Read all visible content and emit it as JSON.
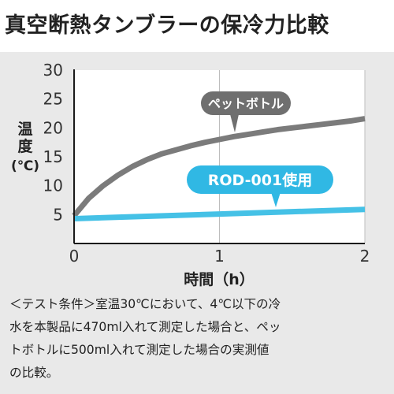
{
  "title": "真空断熱タンブラーの保冷力比較",
  "chart_data": {
    "type": "line",
    "xlabel": "時間（h）",
    "ylabel": [
      "温",
      "度",
      "(℃)"
    ],
    "xlim": [
      0,
      2
    ],
    "ylim": [
      0,
      30
    ],
    "xticks": [
      "0",
      "1",
      "2"
    ],
    "yticks": [
      "5",
      "10",
      "15",
      "20",
      "25",
      "30"
    ],
    "grid": "vertical",
    "series": [
      {
        "name": "ペットボトル",
        "color": "#7b7b7b",
        "label_color": "#6f6f6f",
        "x": [
          0.0,
          0.1,
          0.2,
          0.3,
          0.4,
          0.5,
          0.6,
          0.7,
          0.8,
          0.9,
          1.0,
          1.1,
          1.2,
          1.3,
          1.4,
          1.5,
          1.6,
          1.7,
          1.8,
          1.9,
          2.0
        ],
        "y": [
          4.8,
          7.8,
          10.0,
          11.8,
          13.3,
          14.5,
          15.5,
          16.2,
          16.9,
          17.5,
          18.0,
          18.5,
          18.9,
          19.3,
          19.7,
          20.0,
          20.3,
          20.6,
          20.9,
          21.2,
          21.6
        ]
      },
      {
        "name": "ROD-001使用",
        "color": "#45c1e6",
        "label_color": "#30b8e4",
        "x": [
          0.0,
          0.5,
          1.0,
          1.5,
          2.0
        ],
        "y": [
          4.3,
          4.7,
          5.1,
          5.5,
          5.9
        ]
      }
    ]
  },
  "note": [
    "＜テスト条件＞室温30℃において、4℃以下の冷",
    "水を本製品に470ml入れて測定した場合と、ペッ",
    "トボトルに500ml入れて測定した場合の実測値",
    "の比較。"
  ]
}
